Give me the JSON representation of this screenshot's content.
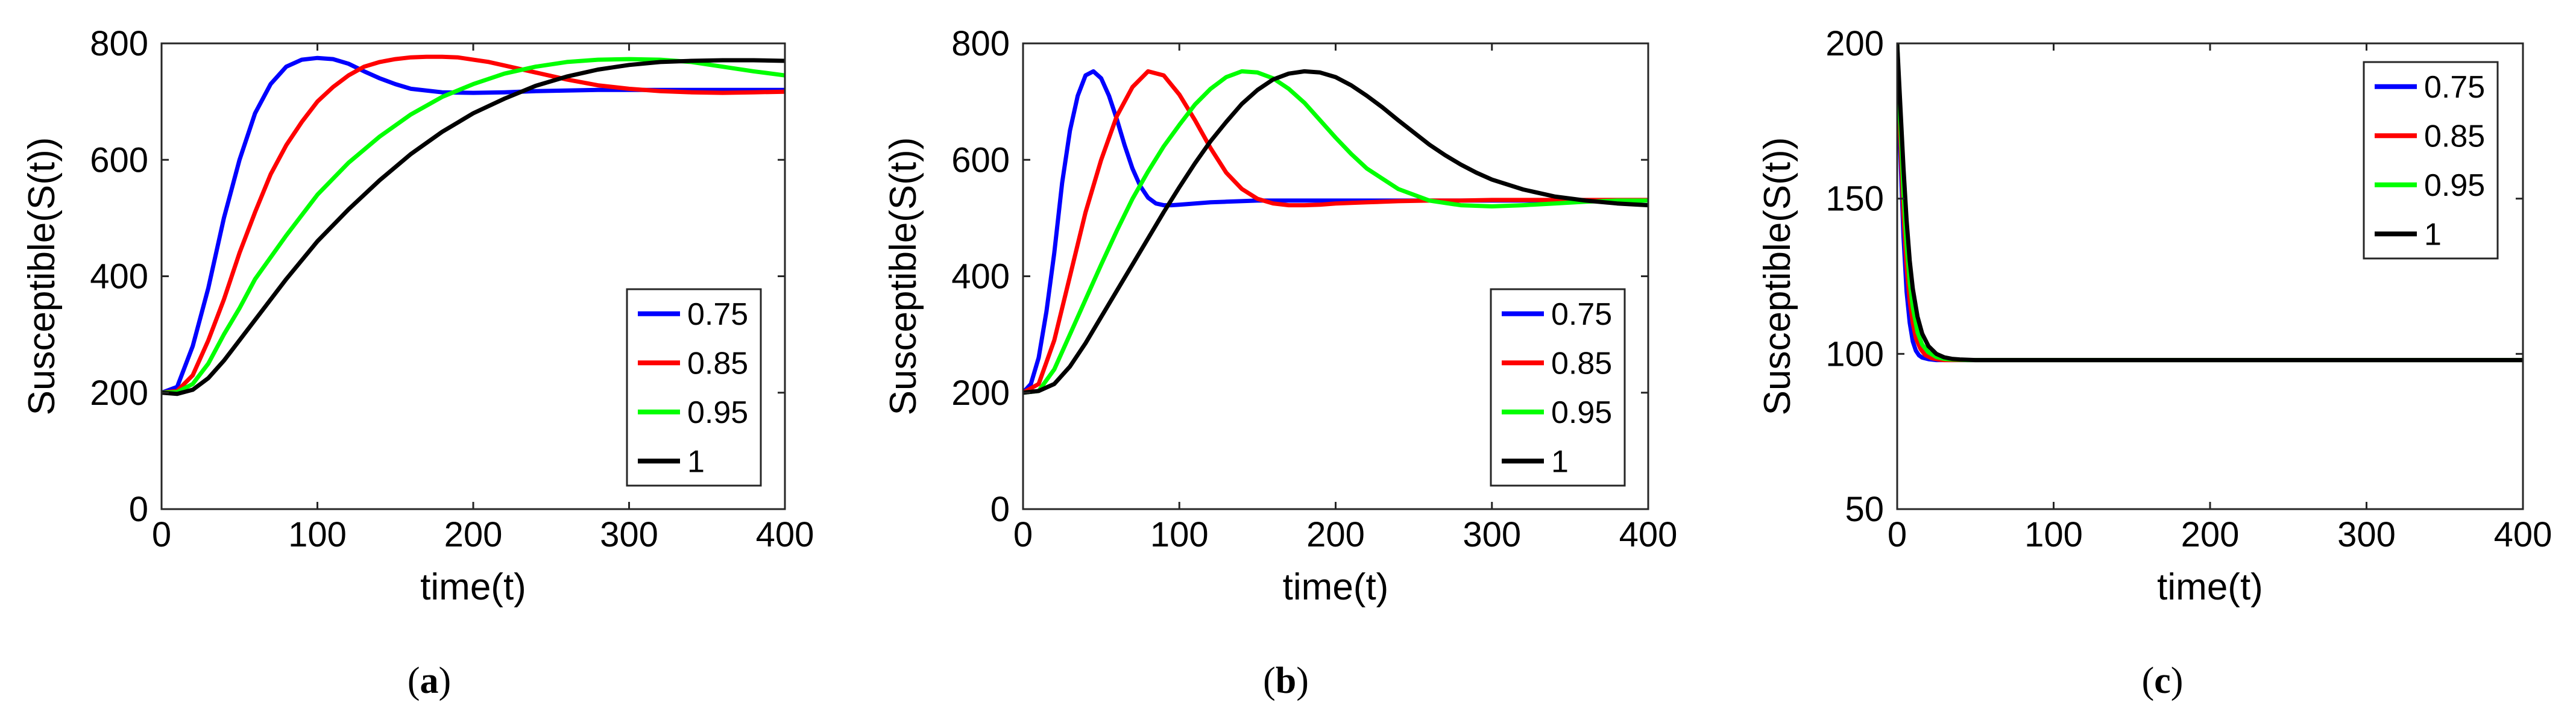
{
  "figure": {
    "colors": {
      "blue": "#0000ff",
      "red": "#ff0000",
      "green": "#00ff00",
      "black": "#000000"
    }
  },
  "chart_data": [
    {
      "type": "line",
      "caption": {
        "open": "(",
        "letter": "a",
        "close": ")"
      },
      "xlabel": "time(t)",
      "ylabel": "Susceptible(S(t))",
      "xlim": [
        0,
        400
      ],
      "ylim": [
        0,
        800
      ],
      "xticks": [
        "0",
        "100",
        "200",
        "300",
        "400"
      ],
      "yticks": [
        "0",
        "200",
        "400",
        "600",
        "800"
      ],
      "grid": false,
      "legend_position": "bottom-right",
      "series": [
        {
          "name": "0.75",
          "color": "#0000ff",
          "x": [
            0,
            10,
            20,
            30,
            40,
            50,
            60,
            70,
            80,
            90,
            100,
            110,
            120,
            130,
            140,
            150,
            160,
            180,
            200,
            220,
            240,
            260,
            280,
            300,
            320,
            340,
            360,
            380,
            400
          ],
          "y": [
            200,
            210,
            280,
            380,
            500,
            600,
            680,
            730,
            760,
            772,
            775,
            773,
            765,
            752,
            740,
            730,
            722,
            716,
            715,
            716,
            718,
            719,
            720,
            720,
            720,
            720,
            720,
            720,
            720
          ]
        },
        {
          "name": "0.85",
          "color": "#ff0000",
          "x": [
            0,
            10,
            20,
            30,
            40,
            50,
            60,
            70,
            80,
            90,
            100,
            110,
            120,
            130,
            140,
            150,
            160,
            170,
            180,
            190,
            200,
            210,
            220,
            240,
            260,
            280,
            300,
            320,
            340,
            360,
            380,
            400
          ],
          "y": [
            200,
            203,
            230,
            290,
            360,
            440,
            510,
            575,
            625,
            665,
            700,
            725,
            745,
            760,
            768,
            773,
            776,
            777,
            777,
            776,
            772,
            768,
            762,
            750,
            738,
            728,
            722,
            718,
            716,
            715,
            716,
            717
          ]
        },
        {
          "name": "0.95",
          "color": "#00ff00",
          "x": [
            0,
            10,
            20,
            30,
            40,
            50,
            60,
            80,
            100,
            120,
            140,
            160,
            180,
            200,
            220,
            240,
            260,
            280,
            300,
            320,
            340,
            360,
            380,
            400
          ],
          "y": [
            200,
            201,
            215,
            250,
            300,
            345,
            395,
            470,
            540,
            595,
            640,
            678,
            708,
            730,
            748,
            760,
            768,
            772,
            773,
            772,
            768,
            760,
            752,
            745
          ]
        },
        {
          "name": "1",
          "color": "#000000",
          "x": [
            0,
            10,
            20,
            30,
            40,
            50,
            60,
            80,
            100,
            120,
            140,
            160,
            180,
            200,
            220,
            240,
            260,
            280,
            300,
            320,
            340,
            360,
            380,
            400
          ],
          "y": [
            200,
            198,
            205,
            225,
            255,
            290,
            325,
            395,
            460,
            515,
            565,
            610,
            648,
            680,
            705,
            727,
            743,
            755,
            763,
            768,
            770,
            771,
            771,
            770
          ]
        }
      ]
    },
    {
      "type": "line",
      "caption": {
        "open": "(",
        "letter": "b",
        "close": ")"
      },
      "xlabel": "time(t)",
      "ylabel": "Susceptible(S(t))",
      "xlim": [
        0,
        400
      ],
      "ylim": [
        0,
        800
      ],
      "xticks": [
        "0",
        "100",
        "200",
        "300",
        "400"
      ],
      "yticks": [
        "0",
        "200",
        "400",
        "600",
        "800"
      ],
      "grid": false,
      "legend_position": "bottom-right",
      "series": [
        {
          "name": "0.75",
          "color": "#0000ff",
          "x": [
            0,
            5,
            10,
            15,
            20,
            25,
            30,
            35,
            40,
            45,
            50,
            55,
            60,
            65,
            70,
            75,
            80,
            85,
            90,
            95,
            100,
            110,
            120,
            130,
            150,
            200,
            250,
            300,
            350,
            400
          ],
          "y": [
            200,
            215,
            260,
            340,
            440,
            560,
            650,
            710,
            745,
            752,
            740,
            710,
            670,
            625,
            585,
            555,
            535,
            525,
            522,
            522,
            523,
            525,
            527,
            528,
            530,
            530,
            530,
            530,
            530,
            530
          ]
        },
        {
          "name": "0.85",
          "color": "#ff0000",
          "x": [
            0,
            10,
            20,
            30,
            40,
            50,
            60,
            70,
            80,
            90,
            100,
            110,
            120,
            130,
            140,
            150,
            160,
            170,
            180,
            190,
            200,
            220,
            240,
            260,
            280,
            300,
            350,
            400
          ],
          "y": [
            200,
            215,
            290,
            400,
            510,
            600,
            675,
            725,
            752,
            745,
            712,
            668,
            620,
            578,
            550,
            533,
            525,
            522,
            522,
            523,
            525,
            527,
            529,
            530,
            530,
            531,
            531,
            531
          ]
        },
        {
          "name": "0.95",
          "color": "#00ff00",
          "x": [
            0,
            10,
            20,
            30,
            40,
            50,
            60,
            70,
            80,
            90,
            100,
            110,
            120,
            130,
            140,
            150,
            160,
            170,
            180,
            190,
            200,
            210,
            220,
            240,
            260,
            280,
            300,
            320,
            340,
            360,
            380,
            400
          ],
          "y": [
            200,
            203,
            240,
            300,
            360,
            420,
            478,
            533,
            580,
            623,
            660,
            695,
            722,
            742,
            752,
            750,
            740,
            722,
            698,
            668,
            638,
            610,
            585,
            550,
            530,
            522,
            520,
            522,
            525,
            528,
            530,
            530
          ]
        },
        {
          "name": "1",
          "color": "#000000",
          "x": [
            0,
            10,
            20,
            30,
            40,
            50,
            60,
            70,
            80,
            90,
            100,
            110,
            120,
            130,
            140,
            150,
            160,
            170,
            180,
            190,
            200,
            210,
            220,
            230,
            240,
            250,
            260,
            270,
            280,
            290,
            300,
            320,
            340,
            360,
            380,
            400
          ],
          "y": [
            200,
            203,
            215,
            245,
            285,
            330,
            375,
            420,
            465,
            510,
            553,
            594,
            632,
            665,
            696,
            720,
            738,
            748,
            752,
            750,
            742,
            728,
            710,
            690,
            668,
            647,
            626,
            608,
            592,
            578,
            566,
            549,
            537,
            530,
            525,
            522
          ]
        }
      ]
    },
    {
      "type": "line",
      "caption": {
        "open": "(",
        "letter": "c",
        "close": ")"
      },
      "xlabel": "time(t)",
      "ylabel": "Susceptible(S(t))",
      "xlim": [
        0,
        400
      ],
      "ylim": [
        50,
        200
      ],
      "xticks": [
        "0",
        "100",
        "200",
        "300",
        "400"
      ],
      "yticks": [
        "50",
        "100",
        "150",
        "200"
      ],
      "grid": false,
      "legend_position": "top-right",
      "series": [
        {
          "name": "0.75",
          "color": "#0000ff",
          "x": [
            0,
            2,
            4,
            6,
            8,
            10,
            12,
            14,
            16,
            20,
            25,
            30,
            400
          ],
          "y": [
            200,
            165,
            138,
            120,
            110,
            104,
            101,
            99.5,
            98.8,
            98.3,
            98,
            98,
            98
          ]
        },
        {
          "name": "0.85",
          "color": "#ff0000",
          "x": [
            0,
            2,
            4,
            6,
            8,
            10,
            12,
            15,
            18,
            22,
            26,
            30,
            40,
            400
          ],
          "y": [
            200,
            170,
            145,
            128,
            117,
            110,
            105,
            101.5,
            99.6,
            98.6,
            98.2,
            98,
            98,
            98
          ]
        },
        {
          "name": "0.95",
          "color": "#00ff00",
          "x": [
            0,
            2,
            4,
            6,
            8,
            10,
            13,
            16,
            20,
            25,
            30,
            35,
            45,
            400
          ],
          "y": [
            200,
            175,
            152,
            135,
            123,
            115,
            107,
            103,
            100.5,
            99,
            98.4,
            98.2,
            98,
            98
          ]
        },
        {
          "name": "1",
          "color": "#000000",
          "x": [
            0,
            2,
            4,
            6,
            8,
            10,
            13,
            16,
            20,
            25,
            30,
            35,
            40,
            50,
            60,
            400
          ],
          "y": [
            200,
            180,
            160,
            143,
            130,
            121,
            112,
            106.5,
            102.5,
            100,
            98.9,
            98.4,
            98.2,
            98,
            98,
            98
          ]
        }
      ]
    }
  ]
}
